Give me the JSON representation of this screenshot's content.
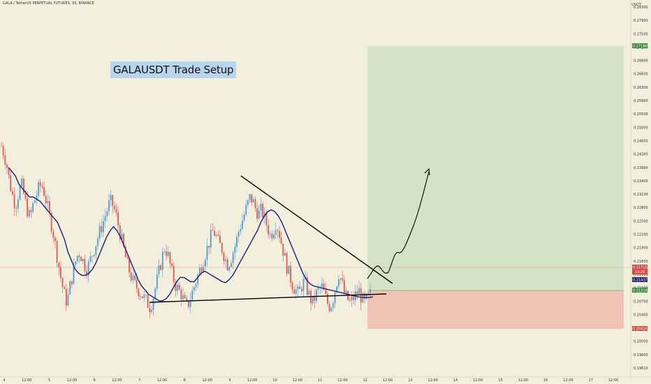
{
  "header": "GALA / TetherUS PERPETUAL FUTURES, 30, BINANCE",
  "axis_title": "USDT",
  "annotation": "GALAUSDT Trade Setup",
  "colors": {
    "background": "#f2efdc",
    "profit_zone": "#d3e3c3",
    "loss_zone": "#efc4b4",
    "candle_up": "#4f9bd4",
    "candle_down": "#e0584f",
    "moving_average": "#1e1a80",
    "trendline": "#000000",
    "price_line": "#e8a19a"
  },
  "chart_data": {
    "type": "candlestick",
    "title": "",
    "xlabel": "",
    "ylabel": "USDT",
    "ylim": [
      0.1955,
      0.2835
    ],
    "y_ticks": [
      "0.28300",
      "0.27900",
      "0.27500",
      "0.27100",
      "0.26800",
      "0.26600",
      "0.26300",
      "0.25900",
      "0.25500",
      "0.25000",
      "0.24600",
      "0.24300",
      "0.23900",
      "0.23400",
      "0.23100",
      "0.22800",
      "0.22500",
      "0.22200",
      "0.21900",
      "0.21600",
      "0.21300",
      "0.21000",
      "0.20700",
      "0.20400",
      "0.20300",
      "0.20000",
      "0.19800",
      "0.19610"
    ],
    "x_ticks": [
      "4",
      "12:00",
      "5",
      "12:00",
      "6",
      "12:00",
      "7",
      "12:00",
      "8",
      "12:00",
      "9",
      "12:00",
      "10",
      "12:00",
      "11",
      "12:00",
      "12",
      "12:00",
      "13",
      "12:00",
      "14",
      "12:00",
      "15",
      "12:00",
      "16",
      "12:00",
      "17",
      "12:00"
    ],
    "current_price": "0.21715",
    "countdown": "13:25",
    "ma_value": "0.21437",
    "entry_price": "0.21214",
    "target_price": "0.27186",
    "stop_price": "0.20420",
    "close_series": [
      0.25,
      0.248,
      0.245,
      0.241,
      0.238,
      0.236,
      0.239,
      0.241,
      0.238,
      0.235,
      0.233,
      0.236,
      0.238,
      0.24,
      0.241,
      0.239,
      0.236,
      0.233,
      0.23,
      0.226,
      0.222,
      0.218,
      0.215,
      0.213,
      0.217,
      0.22,
      0.223,
      0.225,
      0.224,
      0.222,
      0.221,
      0.223,
      0.225,
      0.227,
      0.229,
      0.231,
      0.233,
      0.235,
      0.237,
      0.236,
      0.234,
      0.231,
      0.228,
      0.225,
      0.222,
      0.22,
      0.218,
      0.217,
      0.216,
      0.215,
      0.214,
      0.213,
      0.212,
      0.214,
      0.217,
      0.22,
      0.223,
      0.226,
      0.225,
      0.222,
      0.219,
      0.217,
      0.216,
      0.215,
      0.213,
      0.212,
      0.214,
      0.216,
      0.218,
      0.22,
      0.222,
      0.224,
      0.226,
      0.228,
      0.23,
      0.229,
      0.227,
      0.226,
      0.224,
      0.222,
      0.223,
      0.225,
      0.227,
      0.23,
      0.232,
      0.234,
      0.236,
      0.238,
      0.237,
      0.235,
      0.234,
      0.235,
      0.233,
      0.231,
      0.229,
      0.23,
      0.232,
      0.23,
      0.227,
      0.224,
      0.221,
      0.219,
      0.217,
      0.216,
      0.215,
      0.217,
      0.218,
      0.216,
      0.214,
      0.213,
      0.215,
      0.216,
      0.217,
      0.215,
      0.213,
      0.212,
      0.214,
      0.217,
      0.22,
      0.218,
      0.215,
      0.214,
      0.213,
      0.214,
      0.215,
      0.216,
      0.214,
      0.213,
      0.214,
      0.215
    ],
    "ma_series": [
      0.245,
      0.244,
      0.243,
      0.241,
      0.24,
      0.239,
      0.238,
      0.238,
      0.2375,
      0.237,
      0.236,
      0.235,
      0.234,
      0.233,
      0.232,
      0.23,
      0.228,
      0.225,
      0.223,
      0.221,
      0.22,
      0.2195,
      0.2195,
      0.22,
      0.221,
      0.2225,
      0.2245,
      0.2265,
      0.2285,
      0.23,
      0.231,
      0.23,
      0.2285,
      0.2265,
      0.2245,
      0.2225,
      0.2205,
      0.2185,
      0.217,
      0.216,
      0.215,
      0.2145,
      0.214,
      0.2135,
      0.2135,
      0.214,
      0.215,
      0.2165,
      0.218,
      0.219,
      0.219,
      0.2185,
      0.218,
      0.218,
      0.219,
      0.22,
      0.2205,
      0.22,
      0.2195,
      0.219,
      0.2185,
      0.218,
      0.2178,
      0.2185,
      0.2195,
      0.221,
      0.2225,
      0.224,
      0.2255,
      0.227,
      0.2285,
      0.23,
      0.232,
      0.2335,
      0.2345,
      0.235,
      0.2345,
      0.2335,
      0.232,
      0.23,
      0.228,
      0.226,
      0.224,
      0.222,
      0.22,
      0.2185,
      0.2175,
      0.217,
      0.2168,
      0.2166,
      0.2164,
      0.2162,
      0.216,
      0.2158,
      0.2156,
      0.2154,
      0.2152,
      0.215,
      0.2148,
      0.2146,
      0.2144,
      0.2143,
      0.2142,
      0.2143,
      0.2144
    ]
  }
}
